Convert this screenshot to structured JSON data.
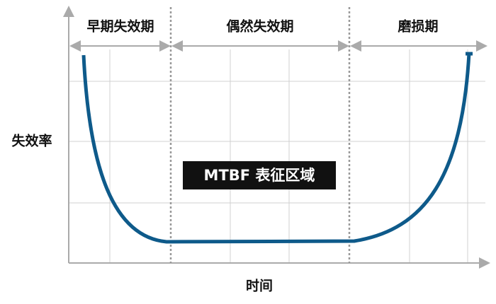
{
  "phases": [
    "早期失效期",
    "偶然失效期",
    "磨损期"
  ],
  "y_label": "失效率",
  "x_label": "时间",
  "region_label": "MTBF 表征区域"
}
